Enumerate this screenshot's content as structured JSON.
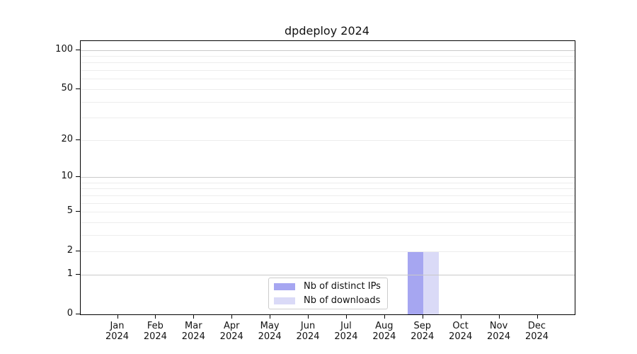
{
  "chart_data": {
    "type": "bar",
    "title": "dpdeploy 2024",
    "year_label": "2024",
    "categories": [
      "Jan",
      "Feb",
      "Mar",
      "Apr",
      "May",
      "Jun",
      "Jul",
      "Aug",
      "Sep",
      "Oct",
      "Nov",
      "Dec"
    ],
    "series": [
      {
        "name": "Nb of distinct IPs",
        "color": "#a6a6f1",
        "values": [
          0,
          0,
          0,
          0,
          0,
          0,
          0,
          0,
          2,
          0,
          0,
          0
        ]
      },
      {
        "name": "Nb of downloads",
        "color": "#dadaf7",
        "values": [
          0,
          0,
          0,
          0,
          0,
          0,
          0,
          0,
          2,
          0,
          0,
          0
        ]
      }
    ],
    "xlabel": "",
    "ylabel": "",
    "yscale": "log1p",
    "yticks": [
      0,
      1,
      2,
      5,
      10,
      20,
      50,
      100
    ],
    "ylim": [
      0,
      117
    ],
    "grid": {
      "major_values": [
        1,
        10,
        100
      ],
      "minor_values": [
        2,
        3,
        4,
        5,
        6,
        7,
        8,
        9,
        20,
        30,
        40,
        50,
        60,
        70,
        80,
        90
      ],
      "major_color": "#c9c9c9",
      "minor_color": "#ededed"
    },
    "legend_position": "inside-lower-center",
    "axis_color": "#000000"
  }
}
